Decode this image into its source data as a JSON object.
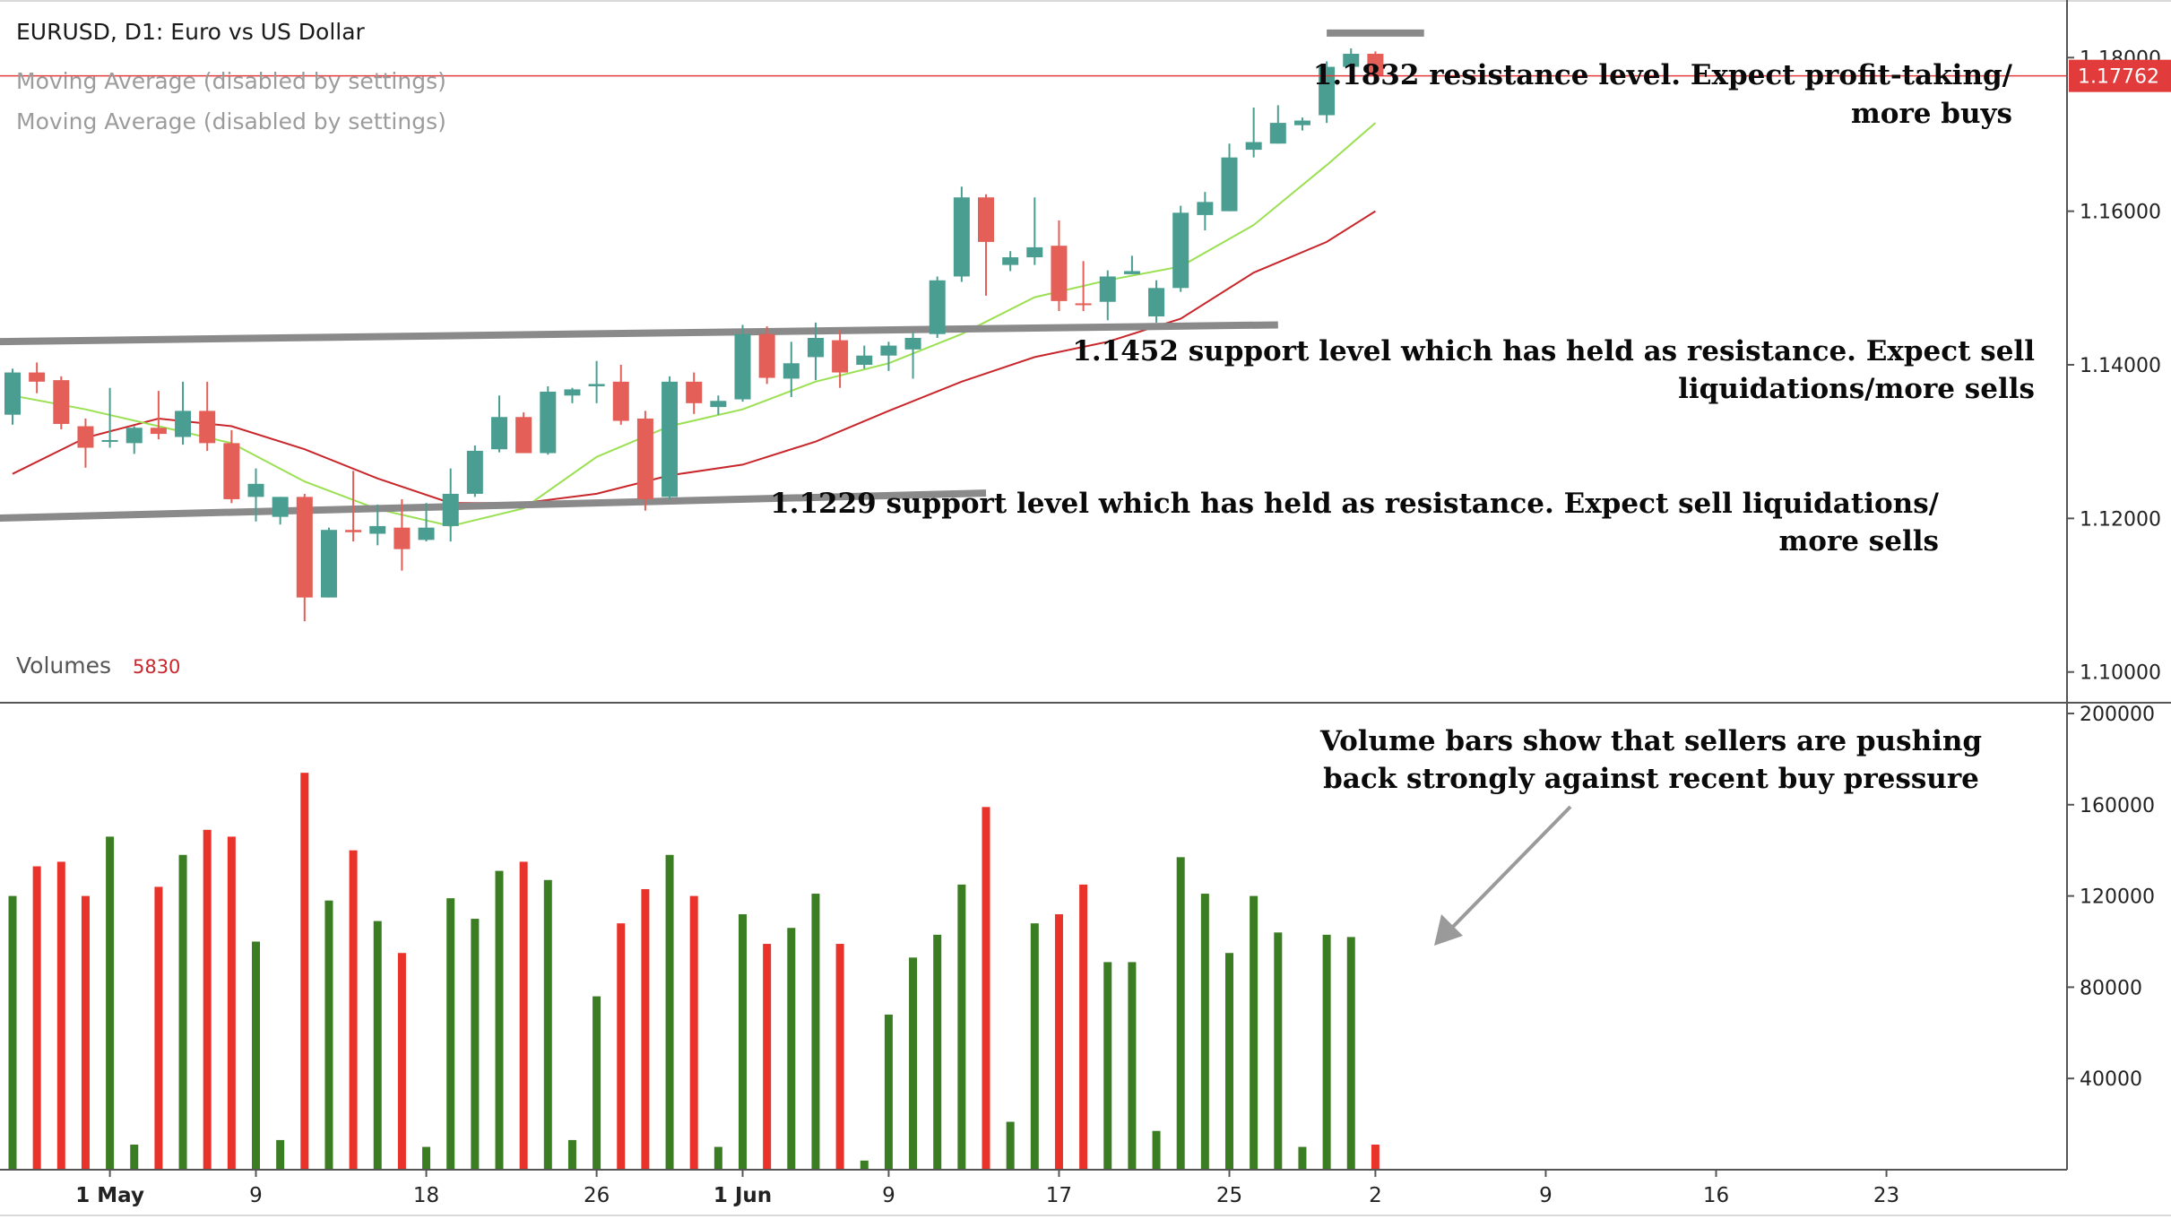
{
  "header": {
    "title": "EURUSD, D1: Euro vs US Dollar",
    "ma_labels": [
      "Moving Average (disabled by settings)",
      "Moving Average (disabled by settings)"
    ],
    "volumes_label": "Volumes",
    "volumes_value": "5830"
  },
  "colors": {
    "up": "#4a9e91",
    "down": "#e35f57",
    "vol_up": "#3a7d22",
    "vol_down": "#e8322a",
    "ma_fast": "#9be052",
    "ma_slow": "#c8262b",
    "price_line": "#e23b3b",
    "level_line": "#8a8a8a",
    "annotation": "#0a0a0a"
  },
  "chart_data": {
    "type": "candlestick",
    "price_axis": {
      "ylim": [
        1.096,
        1.1875
      ],
      "ticks": [
        "1.10000",
        "1.12000",
        "1.14000",
        "1.16000",
        "1.18000"
      ],
      "current_price": "1.17762"
    },
    "volume_axis": {
      "ylim": [
        0,
        200000
      ],
      "ticks": [
        "40000",
        "80000",
        "120000",
        "160000",
        "200000"
      ]
    },
    "x_axis": {
      "labels": [
        {
          "text": "1 May",
          "bold": true,
          "index": 4
        },
        {
          "text": "9",
          "bold": false,
          "index": 10
        },
        {
          "text": "18",
          "bold": false,
          "index": 17
        },
        {
          "text": "26",
          "bold": false,
          "index": 24
        },
        {
          "text": "1 Jun",
          "bold": true,
          "index": 30
        },
        {
          "text": "9",
          "bold": false,
          "index": 36
        },
        {
          "text": "17",
          "bold": false,
          "index": 43
        },
        {
          "text": "25",
          "bold": false,
          "index": 50
        },
        {
          "text": "2",
          "bold": false,
          "index": 56
        },
        {
          "text": "9",
          "bold": false,
          "index": 63
        },
        {
          "text": "16",
          "bold": false,
          "index": 70
        },
        {
          "text": "23",
          "bold": false,
          "index": 77
        }
      ]
    },
    "candles": [
      {
        "o": 1.1335,
        "h": 1.1395,
        "l": 1.1322,
        "c": 1.139
      },
      {
        "o": 1.139,
        "h": 1.1403,
        "l": 1.1363,
        "c": 1.1378
      },
      {
        "o": 1.138,
        "h": 1.1385,
        "l": 1.1316,
        "c": 1.1323
      },
      {
        "o": 1.132,
        "h": 1.133,
        "l": 1.1266,
        "c": 1.1292
      },
      {
        "o": 1.1302,
        "h": 1.137,
        "l": 1.1292,
        "c": 1.1302
      },
      {
        "o": 1.1298,
        "h": 1.132,
        "l": 1.1284,
        "c": 1.1318
      },
      {
        "o": 1.1318,
        "h": 1.1366,
        "l": 1.1303,
        "c": 1.131
      },
      {
        "o": 1.1306,
        "h": 1.1378,
        "l": 1.1296,
        "c": 1.134
      },
      {
        "o": 1.134,
        "h": 1.1378,
        "l": 1.1288,
        "c": 1.1298
      },
      {
        "o": 1.1298,
        "h": 1.1315,
        "l": 1.122,
        "c": 1.1225
      },
      {
        "o": 1.1228,
        "h": 1.1265,
        "l": 1.1196,
        "c": 1.1245
      },
      {
        "o": 1.1202,
        "h": 1.1228,
        "l": 1.1192,
        "c": 1.1228
      },
      {
        "o": 1.1228,
        "h": 1.1232,
        "l": 1.1066,
        "c": 1.1097
      },
      {
        "o": 1.1097,
        "h": 1.1188,
        "l": 1.1097,
        "c": 1.1185
      },
      {
        "o": 1.1185,
        "h": 1.1262,
        "l": 1.117,
        "c": 1.1182
      },
      {
        "o": 1.118,
        "h": 1.1218,
        "l": 1.1165,
        "c": 1.119
      },
      {
        "o": 1.1188,
        "h": 1.1225,
        "l": 1.1132,
        "c": 1.116
      },
      {
        "o": 1.1172,
        "h": 1.122,
        "l": 1.117,
        "c": 1.1188
      },
      {
        "o": 1.119,
        "h": 1.1265,
        "l": 1.117,
        "c": 1.1232
      },
      {
        "o": 1.1232,
        "h": 1.1295,
        "l": 1.1228,
        "c": 1.1288
      },
      {
        "o": 1.129,
        "h": 1.136,
        "l": 1.1286,
        "c": 1.1332
      },
      {
        "o": 1.1332,
        "h": 1.1338,
        "l": 1.129,
        "c": 1.1285
      },
      {
        "o": 1.1285,
        "h": 1.1372,
        "l": 1.1283,
        "c": 1.1365
      },
      {
        "o": 1.136,
        "h": 1.137,
        "l": 1.135,
        "c": 1.1368
      },
      {
        "o": 1.1372,
        "h": 1.1405,
        "l": 1.135,
        "c": 1.1375
      },
      {
        "o": 1.1378,
        "h": 1.14,
        "l": 1.1322,
        "c": 1.1327
      },
      {
        "o": 1.133,
        "h": 1.134,
        "l": 1.121,
        "c": 1.1225
      },
      {
        "o": 1.1228,
        "h": 1.1385,
        "l": 1.1225,
        "c": 1.1378
      },
      {
        "o": 1.1378,
        "h": 1.139,
        "l": 1.1336,
        "c": 1.135
      },
      {
        "o": 1.1345,
        "h": 1.136,
        "l": 1.1335,
        "c": 1.1353
      },
      {
        "o": 1.1355,
        "h": 1.1452,
        "l": 1.1352,
        "c": 1.144
      },
      {
        "o": 1.144,
        "h": 1.145,
        "l": 1.1375,
        "c": 1.1383
      },
      {
        "o": 1.1382,
        "h": 1.143,
        "l": 1.1358,
        "c": 1.1402
      },
      {
        "o": 1.141,
        "h": 1.1455,
        "l": 1.138,
        "c": 1.1435
      },
      {
        "o": 1.1432,
        "h": 1.1445,
        "l": 1.137,
        "c": 1.139
      },
      {
        "o": 1.14,
        "h": 1.1425,
        "l": 1.1395,
        "c": 1.1412
      },
      {
        "o": 1.1412,
        "h": 1.143,
        "l": 1.1392,
        "c": 1.1425
      },
      {
        "o": 1.142,
        "h": 1.1442,
        "l": 1.1382,
        "c": 1.1435
      },
      {
        "o": 1.144,
        "h": 1.1515,
        "l": 1.1435,
        "c": 1.151
      },
      {
        "o": 1.1515,
        "h": 1.1632,
        "l": 1.1508,
        "c": 1.1618
      },
      {
        "o": 1.1618,
        "h": 1.1622,
        "l": 1.149,
        "c": 1.156
      },
      {
        "o": 1.153,
        "h": 1.1548,
        "l": 1.1522,
        "c": 1.154
      },
      {
        "o": 1.154,
        "h": 1.1618,
        "l": 1.153,
        "c": 1.1553
      },
      {
        "o": 1.1555,
        "h": 1.1588,
        "l": 1.147,
        "c": 1.1483
      },
      {
        "o": 1.148,
        "h": 1.1535,
        "l": 1.147,
        "c": 1.1478
      },
      {
        "o": 1.1482,
        "h": 1.1523,
        "l": 1.1458,
        "c": 1.1515
      },
      {
        "o": 1.1518,
        "h": 1.1542,
        "l": 1.1518,
        "c": 1.1522
      },
      {
        "o": 1.1463,
        "h": 1.151,
        "l": 1.1455,
        "c": 1.15
      },
      {
        "o": 1.15,
        "h": 1.1607,
        "l": 1.1495,
        "c": 1.1598
      },
      {
        "o": 1.1595,
        "h": 1.1625,
        "l": 1.1575,
        "c": 1.1612
      },
      {
        "o": 1.16,
        "h": 1.1688,
        "l": 1.16,
        "c": 1.167
      },
      {
        "o": 1.168,
        "h": 1.1735,
        "l": 1.167,
        "c": 1.169
      },
      {
        "o": 1.1688,
        "h": 1.1738,
        "l": 1.1688,
        "c": 1.1715
      },
      {
        "o": 1.1712,
        "h": 1.1722,
        "l": 1.1705,
        "c": 1.1718
      },
      {
        "o": 1.1725,
        "h": 1.1795,
        "l": 1.1715,
        "c": 1.1788
      },
      {
        "o": 1.1788,
        "h": 1.1812,
        "l": 1.1768,
        "c": 1.1805
      },
      {
        "o": 1.1805,
        "h": 1.1808,
        "l": 1.1772,
        "c": 1.1776
      }
    ],
    "ma_fast": [
      [
        0,
        1.136
      ],
      [
        3,
        1.1342
      ],
      [
        6,
        1.132
      ],
      [
        9,
        1.1298
      ],
      [
        12,
        1.1248
      ],
      [
        15,
        1.1212
      ],
      [
        18,
        1.119
      ],
      [
        21,
        1.1213
      ],
      [
        24,
        1.128
      ],
      [
        27,
        1.132
      ],
      [
        30,
        1.1342
      ],
      [
        33,
        1.1378
      ],
      [
        36,
        1.1402
      ],
      [
        39,
        1.144
      ],
      [
        42,
        1.1488
      ],
      [
        45,
        1.151
      ],
      [
        48,
        1.1528
      ],
      [
        51,
        1.1582
      ],
      [
        54,
        1.166
      ],
      [
        56,
        1.1715
      ]
    ],
    "ma_slow": [
      [
        0,
        1.1258
      ],
      [
        3,
        1.1305
      ],
      [
        6,
        1.133
      ],
      [
        9,
        1.132
      ],
      [
        12,
        1.129
      ],
      [
        15,
        1.1252
      ],
      [
        18,
        1.122
      ],
      [
        21,
        1.122
      ],
      [
        24,
        1.1232
      ],
      [
        27,
        1.1256
      ],
      [
        30,
        1.127
      ],
      [
        33,
        1.13
      ],
      [
        36,
        1.134
      ],
      [
        39,
        1.1378
      ],
      [
        42,
        1.141
      ],
      [
        45,
        1.143
      ],
      [
        48,
        1.146
      ],
      [
        51,
        1.152
      ],
      [
        54,
        1.156
      ],
      [
        56,
        1.16
      ]
    ],
    "volume_bars": [
      120000,
      133000,
      135000,
      120000,
      146000,
      11000,
      124000,
      138000,
      149000,
      146000,
      100000,
      13000,
      174000,
      118000,
      140000,
      109000,
      95000,
      10000,
      119000,
      110000,
      131000,
      135000,
      127000,
      13000,
      76000,
      108000,
      123000,
      138000,
      120000,
      10000,
      112000,
      99000,
      106000,
      121000,
      99000,
      4000,
      68000,
      93000,
      103000,
      125000,
      159000,
      21000,
      108000,
      112000,
      125000,
      91000,
      91000,
      17000,
      137000,
      121000,
      95000,
      120000,
      104000,
      10000,
      103000,
      102000,
      11000
    ],
    "levels": [
      {
        "value_start": 1.143,
        "value_end": 1.1452,
        "from": -1,
        "to": 52,
        "text": [
          "1.1452 support level which has held as resistance. Expect sell",
          "liquidations/more sells"
        ]
      },
      {
        "value_start": 1.12,
        "value_end": 1.1233,
        "from": -1,
        "to": 40,
        "text": [
          "1.1229 support level which has held as resistance. Expect sell liquidations/",
          "more sells"
        ]
      },
      {
        "value_start": 1.1832,
        "value_end": 1.1832,
        "from": 54,
        "to": 58,
        "text": [
          "1.1832 resistance level. Expect profit-taking/",
          "more buys"
        ]
      }
    ],
    "volume_note": [
      "Volume bars show that sellers are pushing",
      "back strongly against recent buy pressure"
    ]
  }
}
